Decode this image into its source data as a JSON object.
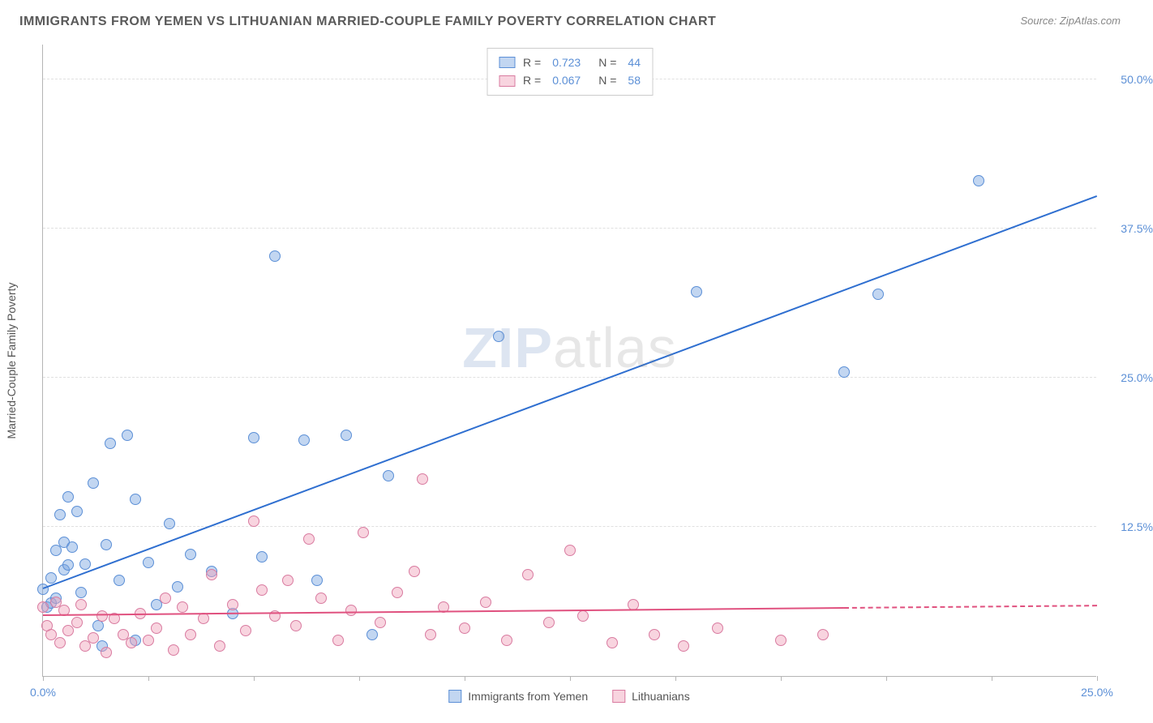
{
  "title": "IMMIGRANTS FROM YEMEN VS LITHUANIAN MARRIED-COUPLE FAMILY POVERTY CORRELATION CHART",
  "source": "Source: ZipAtlas.com",
  "watermark": {
    "part1": "ZIP",
    "part2": "atlas"
  },
  "chart": {
    "type": "scatter",
    "background_color": "#ffffff",
    "grid_color": "#e0e0e0",
    "axis_color": "#b5b5b5",
    "tick_label_color": "#5b8fd6",
    "tick_fontsize": 14,
    "y_label": "Married-Couple Family Poverty",
    "xlim": [
      0,
      25
    ],
    "ylim": [
      0,
      53
    ],
    "y_ticks": [
      {
        "v": 12.5,
        "label": "12.5%"
      },
      {
        "v": 25.0,
        "label": "25.0%"
      },
      {
        "v": 37.5,
        "label": "37.5%"
      },
      {
        "v": 50.0,
        "label": "50.0%"
      }
    ],
    "x_tick_step": 2.5,
    "x_tick_labels": [
      {
        "v": 0,
        "label": "0.0%"
      },
      {
        "v": 25,
        "label": "25.0%"
      }
    ],
    "point_radius": 7,
    "point_border_width": 1
  },
  "series": [
    {
      "key": "yemen",
      "label": "Immigrants from Yemen",
      "fill_color": "rgba(120,165,225,0.45)",
      "border_color": "#5b8fd6",
      "trend_color": "#2f6fd0",
      "R": "0.723",
      "N": "44",
      "trend": {
        "x1": 0,
        "y1": 7.3,
        "x2": 25,
        "y2": 40.2,
        "dash_from_x": null
      },
      "points": [
        [
          0.0,
          7.3
        ],
        [
          0.1,
          5.8
        ],
        [
          0.2,
          8.2
        ],
        [
          0.2,
          6.1
        ],
        [
          0.3,
          10.5
        ],
        [
          0.3,
          6.5
        ],
        [
          0.4,
          13.5
        ],
        [
          0.5,
          8.9
        ],
        [
          0.5,
          11.2
        ],
        [
          0.6,
          9.3
        ],
        [
          0.6,
          15.0
        ],
        [
          0.7,
          10.8
        ],
        [
          0.8,
          13.8
        ],
        [
          0.9,
          7.0
        ],
        [
          1.0,
          9.4
        ],
        [
          1.2,
          16.2
        ],
        [
          1.3,
          4.2
        ],
        [
          1.4,
          2.5
        ],
        [
          1.5,
          11.0
        ],
        [
          1.6,
          19.5
        ],
        [
          1.8,
          8.0
        ],
        [
          2.0,
          20.2
        ],
        [
          2.2,
          14.8
        ],
        [
          2.2,
          3.0
        ],
        [
          2.5,
          9.5
        ],
        [
          2.7,
          6.0
        ],
        [
          3.0,
          12.8
        ],
        [
          3.2,
          7.5
        ],
        [
          3.5,
          10.2
        ],
        [
          4.0,
          8.8
        ],
        [
          4.5,
          5.2
        ],
        [
          5.0,
          20.0
        ],
        [
          5.2,
          10.0
        ],
        [
          5.5,
          35.2
        ],
        [
          6.2,
          19.8
        ],
        [
          6.5,
          8.0
        ],
        [
          7.2,
          20.2
        ],
        [
          8.2,
          16.8
        ],
        [
          7.8,
          3.5
        ],
        [
          10.8,
          28.5
        ],
        [
          15.5,
          32.2
        ],
        [
          19.0,
          25.5
        ],
        [
          19.8,
          32.0
        ],
        [
          22.2,
          41.5
        ]
      ]
    },
    {
      "key": "lithuanian",
      "label": "Lithuanians",
      "fill_color": "rgba(240,160,185,0.45)",
      "border_color": "#d97ba0",
      "trend_color": "#e0517f",
      "R": "0.067",
      "N": "58",
      "trend": {
        "x1": 0,
        "y1": 5.0,
        "x2": 25,
        "y2": 5.8,
        "dash_from_x": 19.0
      },
      "points": [
        [
          0.0,
          5.8
        ],
        [
          0.1,
          4.2
        ],
        [
          0.2,
          3.5
        ],
        [
          0.3,
          6.2
        ],
        [
          0.4,
          2.8
        ],
        [
          0.5,
          5.5
        ],
        [
          0.6,
          3.8
        ],
        [
          0.8,
          4.5
        ],
        [
          0.9,
          6.0
        ],
        [
          1.0,
          2.5
        ],
        [
          1.2,
          3.2
        ],
        [
          1.4,
          5.0
        ],
        [
          1.5,
          2.0
        ],
        [
          1.7,
          4.8
        ],
        [
          1.9,
          3.5
        ],
        [
          2.1,
          2.8
        ],
        [
          2.3,
          5.2
        ],
        [
          2.5,
          3.0
        ],
        [
          2.7,
          4.0
        ],
        [
          2.9,
          6.5
        ],
        [
          3.1,
          2.2
        ],
        [
          3.3,
          5.8
        ],
        [
          3.5,
          3.5
        ],
        [
          3.8,
          4.8
        ],
        [
          4.0,
          8.5
        ],
        [
          4.2,
          2.5
        ],
        [
          4.5,
          6.0
        ],
        [
          4.8,
          3.8
        ],
        [
          5.0,
          13.0
        ],
        [
          5.2,
          7.2
        ],
        [
          5.5,
          5.0
        ],
        [
          5.8,
          8.0
        ],
        [
          6.0,
          4.2
        ],
        [
          6.3,
          11.5
        ],
        [
          6.6,
          6.5
        ],
        [
          7.0,
          3.0
        ],
        [
          7.3,
          5.5
        ],
        [
          7.6,
          12.0
        ],
        [
          8.0,
          4.5
        ],
        [
          8.4,
          7.0
        ],
        [
          8.8,
          8.8
        ],
        [
          9.0,
          16.5
        ],
        [
          9.2,
          3.5
        ],
        [
          9.5,
          5.8
        ],
        [
          10.0,
          4.0
        ],
        [
          10.5,
          6.2
        ],
        [
          11.0,
          3.0
        ],
        [
          11.5,
          8.5
        ],
        [
          12.0,
          4.5
        ],
        [
          12.5,
          10.5
        ],
        [
          12.8,
          5.0
        ],
        [
          13.5,
          2.8
        ],
        [
          14.0,
          6.0
        ],
        [
          14.5,
          3.5
        ],
        [
          15.2,
          2.5
        ],
        [
          16.0,
          4.0
        ],
        [
          17.5,
          3.0
        ],
        [
          18.5,
          3.5
        ]
      ]
    }
  ],
  "legend_top": {
    "r_label": "R =",
    "n_label": "N ="
  }
}
